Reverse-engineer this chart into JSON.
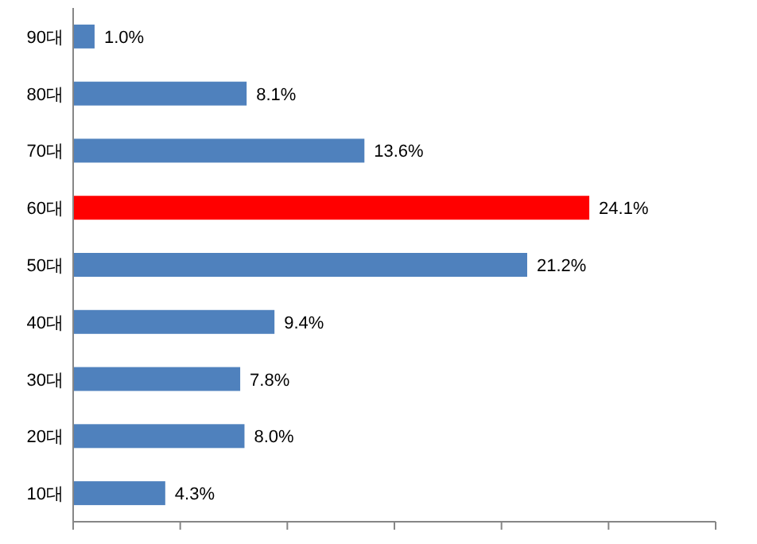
{
  "chart_data": {
    "type": "bar",
    "orientation": "horizontal",
    "categories": [
      "90대",
      "80대",
      "70대",
      "60대",
      "50대",
      "40대",
      "30대",
      "20대",
      "10대"
    ],
    "values": [
      1.0,
      8.1,
      13.6,
      24.1,
      21.2,
      9.4,
      7.8,
      8.0,
      4.3
    ],
    "colors": [
      "#4f81bd",
      "#4f81bd",
      "#4f81bd",
      "#ff0000",
      "#4f81bd",
      "#4f81bd",
      "#4f81bd",
      "#4f81bd",
      "#4f81bd"
    ],
    "value_labels": [
      "1.0%",
      "8.1%",
      "13.6%",
      "24.1%",
      "21.2%",
      "9.4%",
      "7.8%",
      "8.0%",
      "4.3%"
    ],
    "xlim": [
      0,
      30
    ],
    "xticks": [
      {
        "value": 0,
        "label": null
      },
      {
        "value": 5,
        "label": null
      },
      {
        "value": 10,
        "label": null
      },
      {
        "value": 15,
        "label": null
      },
      {
        "value": 20,
        "label": null
      },
      {
        "value": 25,
        "label": null
      },
      {
        "value": 30,
        "label": null
      }
    ],
    "tick_labels": "y"
  }
}
